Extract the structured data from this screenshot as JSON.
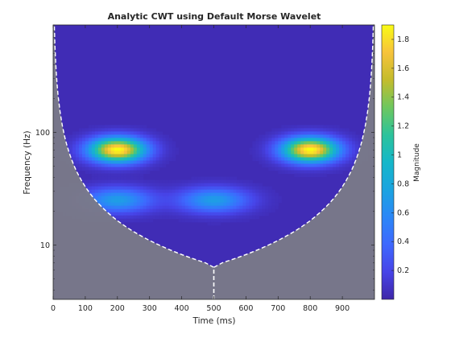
{
  "chart_data": {
    "type": "heatmap",
    "title": "Analytic CWT using Default Morse Wavelet",
    "xlabel": "Time (ms)",
    "ylabel": "Frequency (Hz)",
    "xlim": [
      0,
      1000
    ],
    "ylim": [
      3.3,
      900
    ],
    "yscale": "log",
    "x_ticks": [
      0,
      100,
      200,
      300,
      400,
      500,
      600,
      700,
      800,
      900
    ],
    "y_ticks": [
      10,
      100
    ],
    "colorbar": {
      "label": "Magnitude",
      "range": [
        0,
        1.9
      ],
      "ticks": [
        0.2,
        0.4,
        0.6,
        0.8,
        1,
        1.2,
        1.4,
        1.6,
        1.8
      ],
      "colormap": "parula"
    },
    "background_value": 0.04,
    "components": [
      {
        "t_center": 200,
        "freq_hz": 70,
        "t_width": 60,
        "peak": 1.88
      },
      {
        "t_center": 800,
        "freq_hz": 70,
        "t_width": 60,
        "peak": 1.88
      },
      {
        "t_center": 200,
        "freq_hz": 25,
        "t_width": 75,
        "peak": 0.68
      },
      {
        "t_center": 500,
        "freq_hz": 25,
        "t_width": 75,
        "peak": 0.68
      }
    ],
    "cone_of_influence_color": "#7a7a88"
  }
}
